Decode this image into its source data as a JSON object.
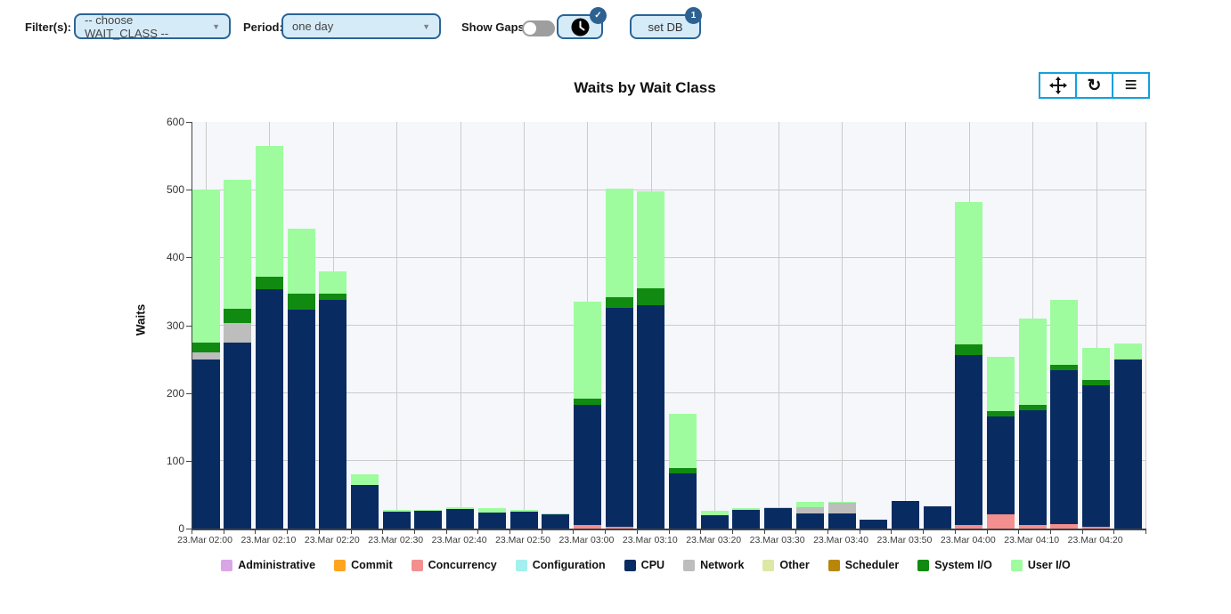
{
  "header": {
    "filters_label": "Filter(s):",
    "wait_class_select": {
      "value": "-- choose WAIT_CLASS --"
    },
    "period_label": "Period:",
    "period_select": {
      "value": "one day"
    },
    "show_gaps_label": "Show Gaps:",
    "show_gaps_state": "off",
    "clock_button": {
      "icon": "clock-icon",
      "badge": "✓"
    },
    "set_db_button": {
      "label": "set DB",
      "badge": "1"
    }
  },
  "toolbar": {
    "buttons": [
      {
        "name": "pan-icon"
      },
      {
        "name": "reset-icon",
        "glyph": "↻"
      },
      {
        "name": "menu-icon",
        "glyph": "≡"
      }
    ]
  },
  "chart_data": {
    "type": "bar",
    "stacked": true,
    "title": "Waits by Wait Class",
    "xlabel": "",
    "ylabel": "Waits",
    "ylim": [
      0,
      600
    ],
    "yticks": [
      0,
      100,
      200,
      300,
      400,
      500,
      600
    ],
    "grid": true,
    "legend_position": "bottom",
    "x_tick_labels": [
      "23.Mar 02:00",
      "23.Mar 02:10",
      "23.Mar 02:20",
      "23.Mar 02:30",
      "23.Mar 02:40",
      "23.Mar 02:50",
      "23.Mar 03:00",
      "23.Mar 03:10",
      "23.Mar 03:20",
      "23.Mar 03:30",
      "23.Mar 03:40",
      "23.Mar 03:50",
      "23.Mar 04:00",
      "23.Mar 04:10",
      "23.Mar 04:20"
    ],
    "series_order": [
      "administrative",
      "commit",
      "concurrency",
      "configuration",
      "cpu",
      "network",
      "other",
      "scheduler",
      "system_io",
      "user_io"
    ],
    "legend": [
      {
        "key": "administrative",
        "label": "Administrative",
        "color": "#d9a6e5"
      },
      {
        "key": "commit",
        "label": "Commit",
        "color": "#ffa421"
      },
      {
        "key": "concurrency",
        "label": "Concurrency",
        "color": "#f48f8f"
      },
      {
        "key": "configuration",
        "label": "Configuration",
        "color": "#a3f0ee"
      },
      {
        "key": "cpu",
        "label": "CPU",
        "color": "#082c62"
      },
      {
        "key": "network",
        "label": "Network",
        "color": "#bdbdbd"
      },
      {
        "key": "other",
        "label": "Other",
        "color": "#dce8a6"
      },
      {
        "key": "scheduler",
        "label": "Scheduler",
        "color": "#b8860b"
      },
      {
        "key": "system_io",
        "label": "System I/O",
        "color": "#118a11"
      },
      {
        "key": "user_io",
        "label": "User I/O",
        "color": "#9efc9e"
      }
    ],
    "bars": [
      {
        "time": "23.Mar 02:00",
        "segments": {
          "cpu": 250,
          "network": 10,
          "system_io": 15,
          "user_io": 225
        }
      },
      {
        "time": "23.Mar 02:05",
        "segments": {
          "cpu": 275,
          "network": 28,
          "system_io": 21,
          "user_io": 191
        }
      },
      {
        "time": "23.Mar 02:10",
        "segments": {
          "cpu": 353,
          "system_io": 18,
          "user_io": 194
        }
      },
      {
        "time": "23.Mar 02:15",
        "segments": {
          "cpu": 323,
          "system_io": 24,
          "user_io": 96
        }
      },
      {
        "time": "23.Mar 02:20",
        "segments": {
          "cpu": 338,
          "system_io": 9,
          "user_io": 33
        }
      },
      {
        "time": "23.Mar 02:25",
        "segments": {
          "cpu": 64,
          "user_io": 16
        }
      },
      {
        "time": "23.Mar 02:30",
        "segments": {
          "cpu": 25,
          "user_io": 2
        }
      },
      {
        "time": "23.Mar 02:35",
        "segments": {
          "cpu": 26,
          "user_io": 2
        }
      },
      {
        "time": "23.Mar 02:40",
        "segments": {
          "cpu": 29,
          "user_io": 3
        }
      },
      {
        "time": "23.Mar 02:45",
        "segments": {
          "cpu": 24,
          "user_io": 6
        }
      },
      {
        "time": "23.Mar 02:50",
        "segments": {
          "cpu": 25,
          "user_io": 2
        }
      },
      {
        "time": "23.Mar 02:55",
        "segments": {
          "cpu": 21,
          "user_io": 2
        }
      },
      {
        "time": "23.Mar 03:00",
        "segments": {
          "concurrency": 5,
          "cpu": 178,
          "system_io": 9,
          "user_io": 143
        }
      },
      {
        "time": "23.Mar 03:05",
        "segments": {
          "concurrency": 3,
          "cpu": 322,
          "system_io": 16,
          "user_io": 161
        }
      },
      {
        "time": "23.Mar 03:10",
        "segments": {
          "cpu": 330,
          "system_io": 25,
          "user_io": 143
        }
      },
      {
        "time": "23.Mar 03:15",
        "segments": {
          "cpu": 81,
          "system_io": 8,
          "user_io": 80
        }
      },
      {
        "time": "23.Mar 03:20",
        "segments": {
          "cpu": 20,
          "user_io": 6
        }
      },
      {
        "time": "23.Mar 03:25",
        "segments": {
          "cpu": 27,
          "user_io": 3
        }
      },
      {
        "time": "23.Mar 03:30",
        "segments": {
          "cpu": 30,
          "user_io": 2
        }
      },
      {
        "time": "23.Mar 03:35",
        "segments": {
          "cpu": 22,
          "network": 10,
          "user_io": 8
        }
      },
      {
        "time": "23.Mar 03:40",
        "segments": {
          "cpu": 22,
          "network": 16,
          "user_io": 2
        }
      },
      {
        "time": "23.Mar 03:45",
        "segments": {
          "cpu": 13
        }
      },
      {
        "time": "23.Mar 03:50",
        "segments": {
          "cpu": 41
        }
      },
      {
        "time": "23.Mar 03:55",
        "segments": {
          "cpu": 33
        }
      },
      {
        "time": "23.Mar 04:00",
        "segments": {
          "concurrency": 5,
          "cpu": 251,
          "system_io": 16,
          "user_io": 210
        }
      },
      {
        "time": "23.Mar 04:05",
        "segments": {
          "concurrency": 21,
          "cpu": 144,
          "system_io": 8,
          "user_io": 81
        }
      },
      {
        "time": "23.Mar 04:10",
        "segments": {
          "concurrency": 5,
          "cpu": 169,
          "system_io": 9,
          "user_io": 127
        }
      },
      {
        "time": "23.Mar 04:15",
        "segments": {
          "concurrency": 7,
          "cpu": 227,
          "system_io": 7,
          "user_io": 97
        }
      },
      {
        "time": "23.Mar 04:20",
        "segments": {
          "concurrency": 2,
          "cpu": 210,
          "system_io": 7,
          "user_io": 48
        }
      },
      {
        "time": "23.Mar 04:25",
        "segments": {
          "cpu": 250,
          "user_io": 23
        }
      }
    ]
  },
  "colors": {
    "button_fill": "#d6ebf8",
    "button_border": "#2a6496",
    "badge": "#2d6191",
    "modebar_border": "#13a1dc",
    "plot_background": "#f5f7fb",
    "gridline": "#cbcbcb",
    "axis": "#444444",
    "toggle_track": "#9e9e9e"
  }
}
